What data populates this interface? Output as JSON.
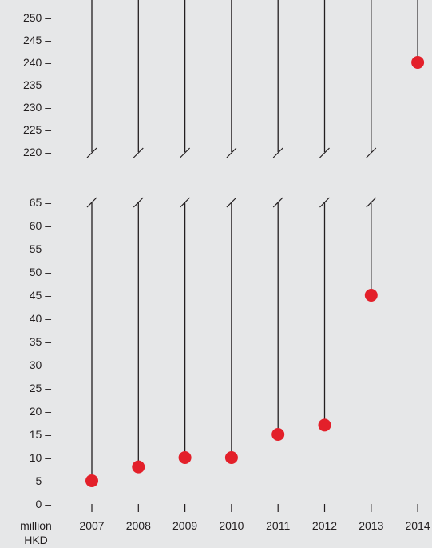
{
  "chart_data": {
    "type": "lollipop",
    "title": "",
    "xlabel": "",
    "ylabel": "million HKD",
    "unit_line1": "million",
    "unit_line2": "HKD",
    "axis_break": true,
    "upper_ylim": [
      220,
      253
    ],
    "lower_ylim": [
      0,
      65
    ],
    "upper_ticks": [
      220,
      225,
      230,
      235,
      240,
      245,
      250
    ],
    "lower_ticks": [
      0,
      5,
      10,
      15,
      20,
      25,
      30,
      35,
      40,
      45,
      50,
      55,
      60,
      65
    ],
    "tick_suffix": " –",
    "categories": [
      "2007",
      "2008",
      "2009",
      "2010",
      "2011",
      "2012",
      "2013",
      "2014"
    ],
    "values": [
      5,
      8,
      10,
      10,
      15,
      17,
      45,
      240
    ],
    "grid": false,
    "point_color": "#e3202a",
    "stem_color": "#231f20"
  }
}
